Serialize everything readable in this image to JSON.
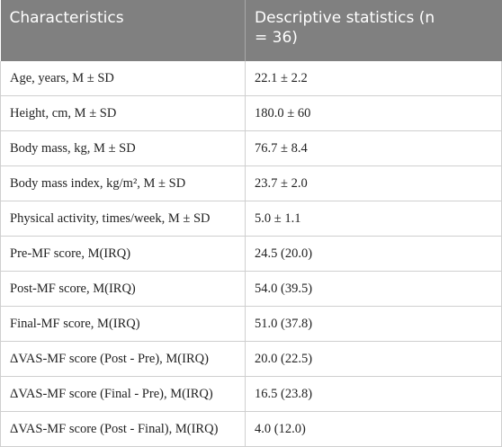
{
  "table": {
    "header": [
      "Characteristics",
      "Descriptive statistics (n = 36)"
    ],
    "rows": [
      [
        "Age, years, M ± SD",
        "22.1 ± 2.2"
      ],
      [
        "Height, cm, M ± SD",
        "180.0 ± 60"
      ],
      [
        "Body mass, kg, M ± SD",
        "76.7 ± 8.4"
      ],
      [
        "Body mass index, kg/m², M ± SD",
        "23.7 ± 2.0"
      ],
      [
        "Physical activity, times/week, M ± SD",
        "5.0 ± 1.1"
      ],
      [
        "Pre-MF score, M(IRQ)",
        "24.5 (20.0)"
      ],
      [
        "Post-MF score, M(IRQ)",
        "54.0 (39.5)"
      ],
      [
        "Final-MF score, M(IRQ)",
        "51.0 (37.8)"
      ],
      [
        "ΔVAS-MF score (Post - Pre), M(IRQ)",
        "20.0 (22.5)"
      ],
      [
        "ΔVAS-MF score (Final - Pre), M(IRQ)",
        "16.5 (23.8)"
      ],
      [
        "ΔVAS-MF score (Post - Final), M(IRQ)",
        "4.0 (12.0)"
      ]
    ]
  }
}
